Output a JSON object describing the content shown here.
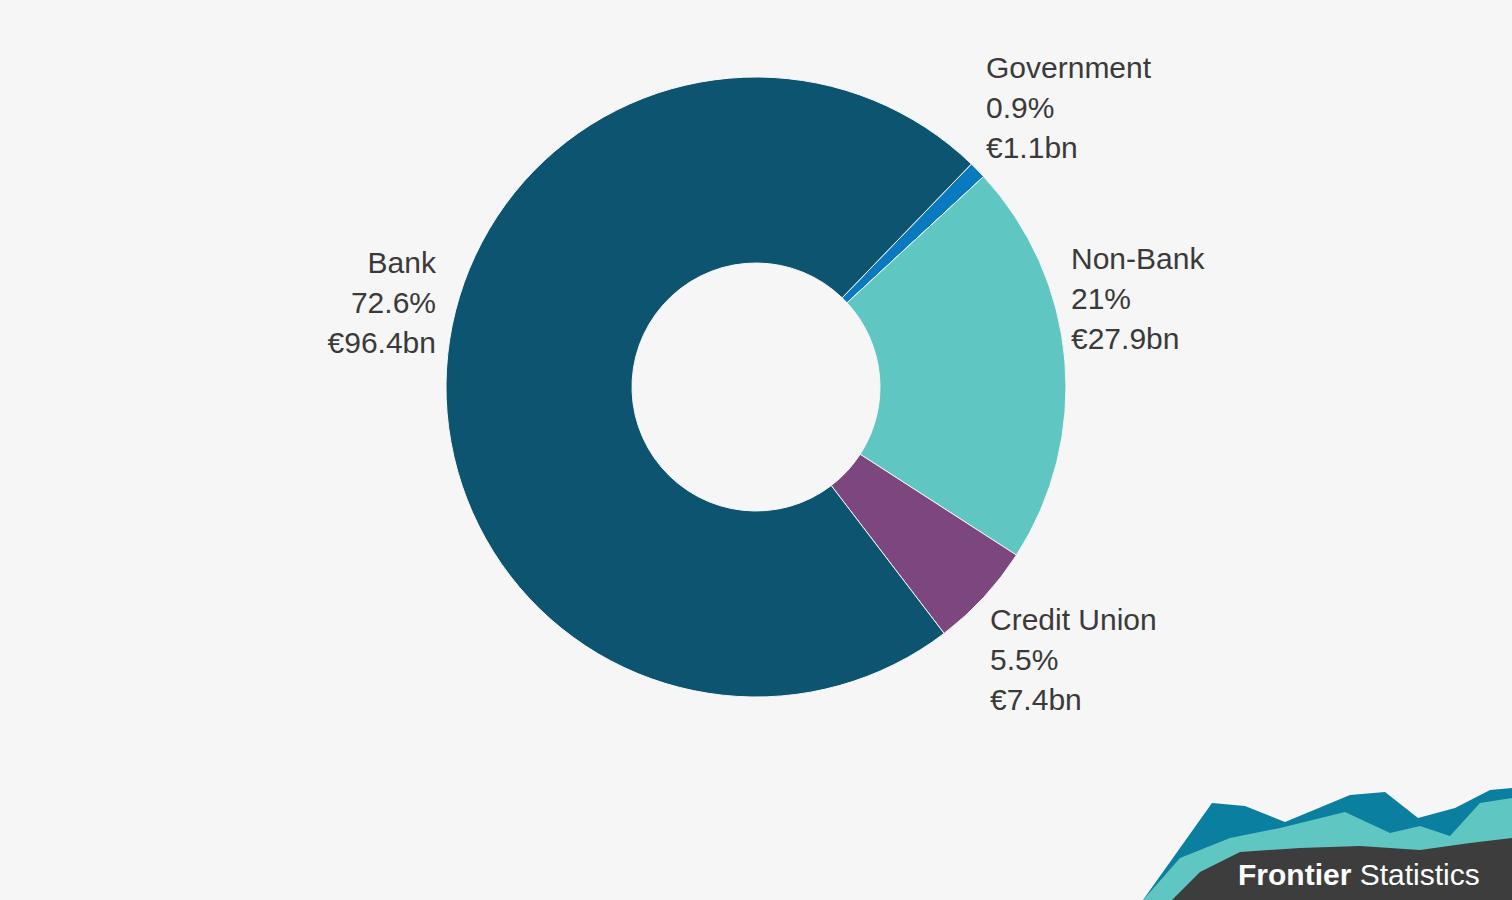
{
  "chart_data": {
    "type": "donut",
    "categories": [
      "Government",
      "Non-Bank",
      "Credit Union",
      "Bank"
    ],
    "values": [
      0.9,
      21,
      5.5,
      72.6
    ],
    "value_labels": [
      "0.9%",
      "21%",
      "5.5%",
      "72.6%"
    ],
    "amount_labels": [
      "€1.1bn",
      "€27.9bn",
      "€7.4bn",
      "€96.4bn"
    ],
    "colors": [
      "#0a7ac0",
      "#5fc6c2",
      "#7b477e",
      "#0d5470"
    ],
    "data_labels": true,
    "annotation": "Frontier Statistics"
  }
}
